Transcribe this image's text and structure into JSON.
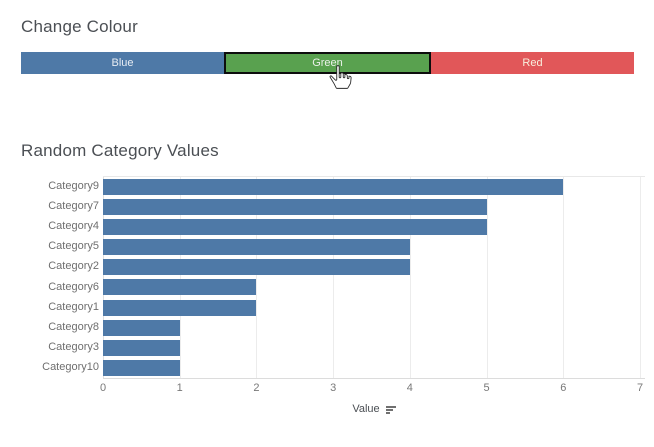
{
  "colors": {
    "bar": "#4e79a7",
    "grid": "#ececec",
    "zero_line": "#e0e0e0",
    "title_text": "#4b4f54",
    "label_text": "#6f6f6f",
    "selected_border": "#0d0d0d"
  },
  "change_colour": {
    "title": "Change Colour",
    "buttons": [
      {
        "label": "Blue",
        "color": "#4e79a7",
        "text_color": "#e8edf3",
        "selected": false
      },
      {
        "label": "Green",
        "color": "#59a14f",
        "text_color": "#ebf1e9",
        "selected": true
      },
      {
        "label": "Red",
        "color": "#e15759",
        "text_color": "#f8eedd",
        "selected": false
      }
    ]
  },
  "cursor": {
    "icon": "hand-pointer-icon"
  },
  "chart_data": {
    "type": "bar",
    "orientation": "horizontal",
    "title": "Random Category Values",
    "categories": [
      "Category9",
      "Category7",
      "Category4",
      "Category5",
      "Category2",
      "Category6",
      "Category1",
      "Category8",
      "Category3",
      "Category10"
    ],
    "values": [
      6,
      5,
      5,
      4,
      4,
      2,
      2,
      1,
      1,
      1
    ],
    "xlabel": "Value",
    "xlim": [
      0,
      7
    ],
    "xticks": [
      0,
      1,
      2,
      3,
      4,
      5,
      6,
      7
    ],
    "bar_color": "#4e79a7",
    "sort": "descending",
    "grid": true,
    "legend": "none"
  }
}
